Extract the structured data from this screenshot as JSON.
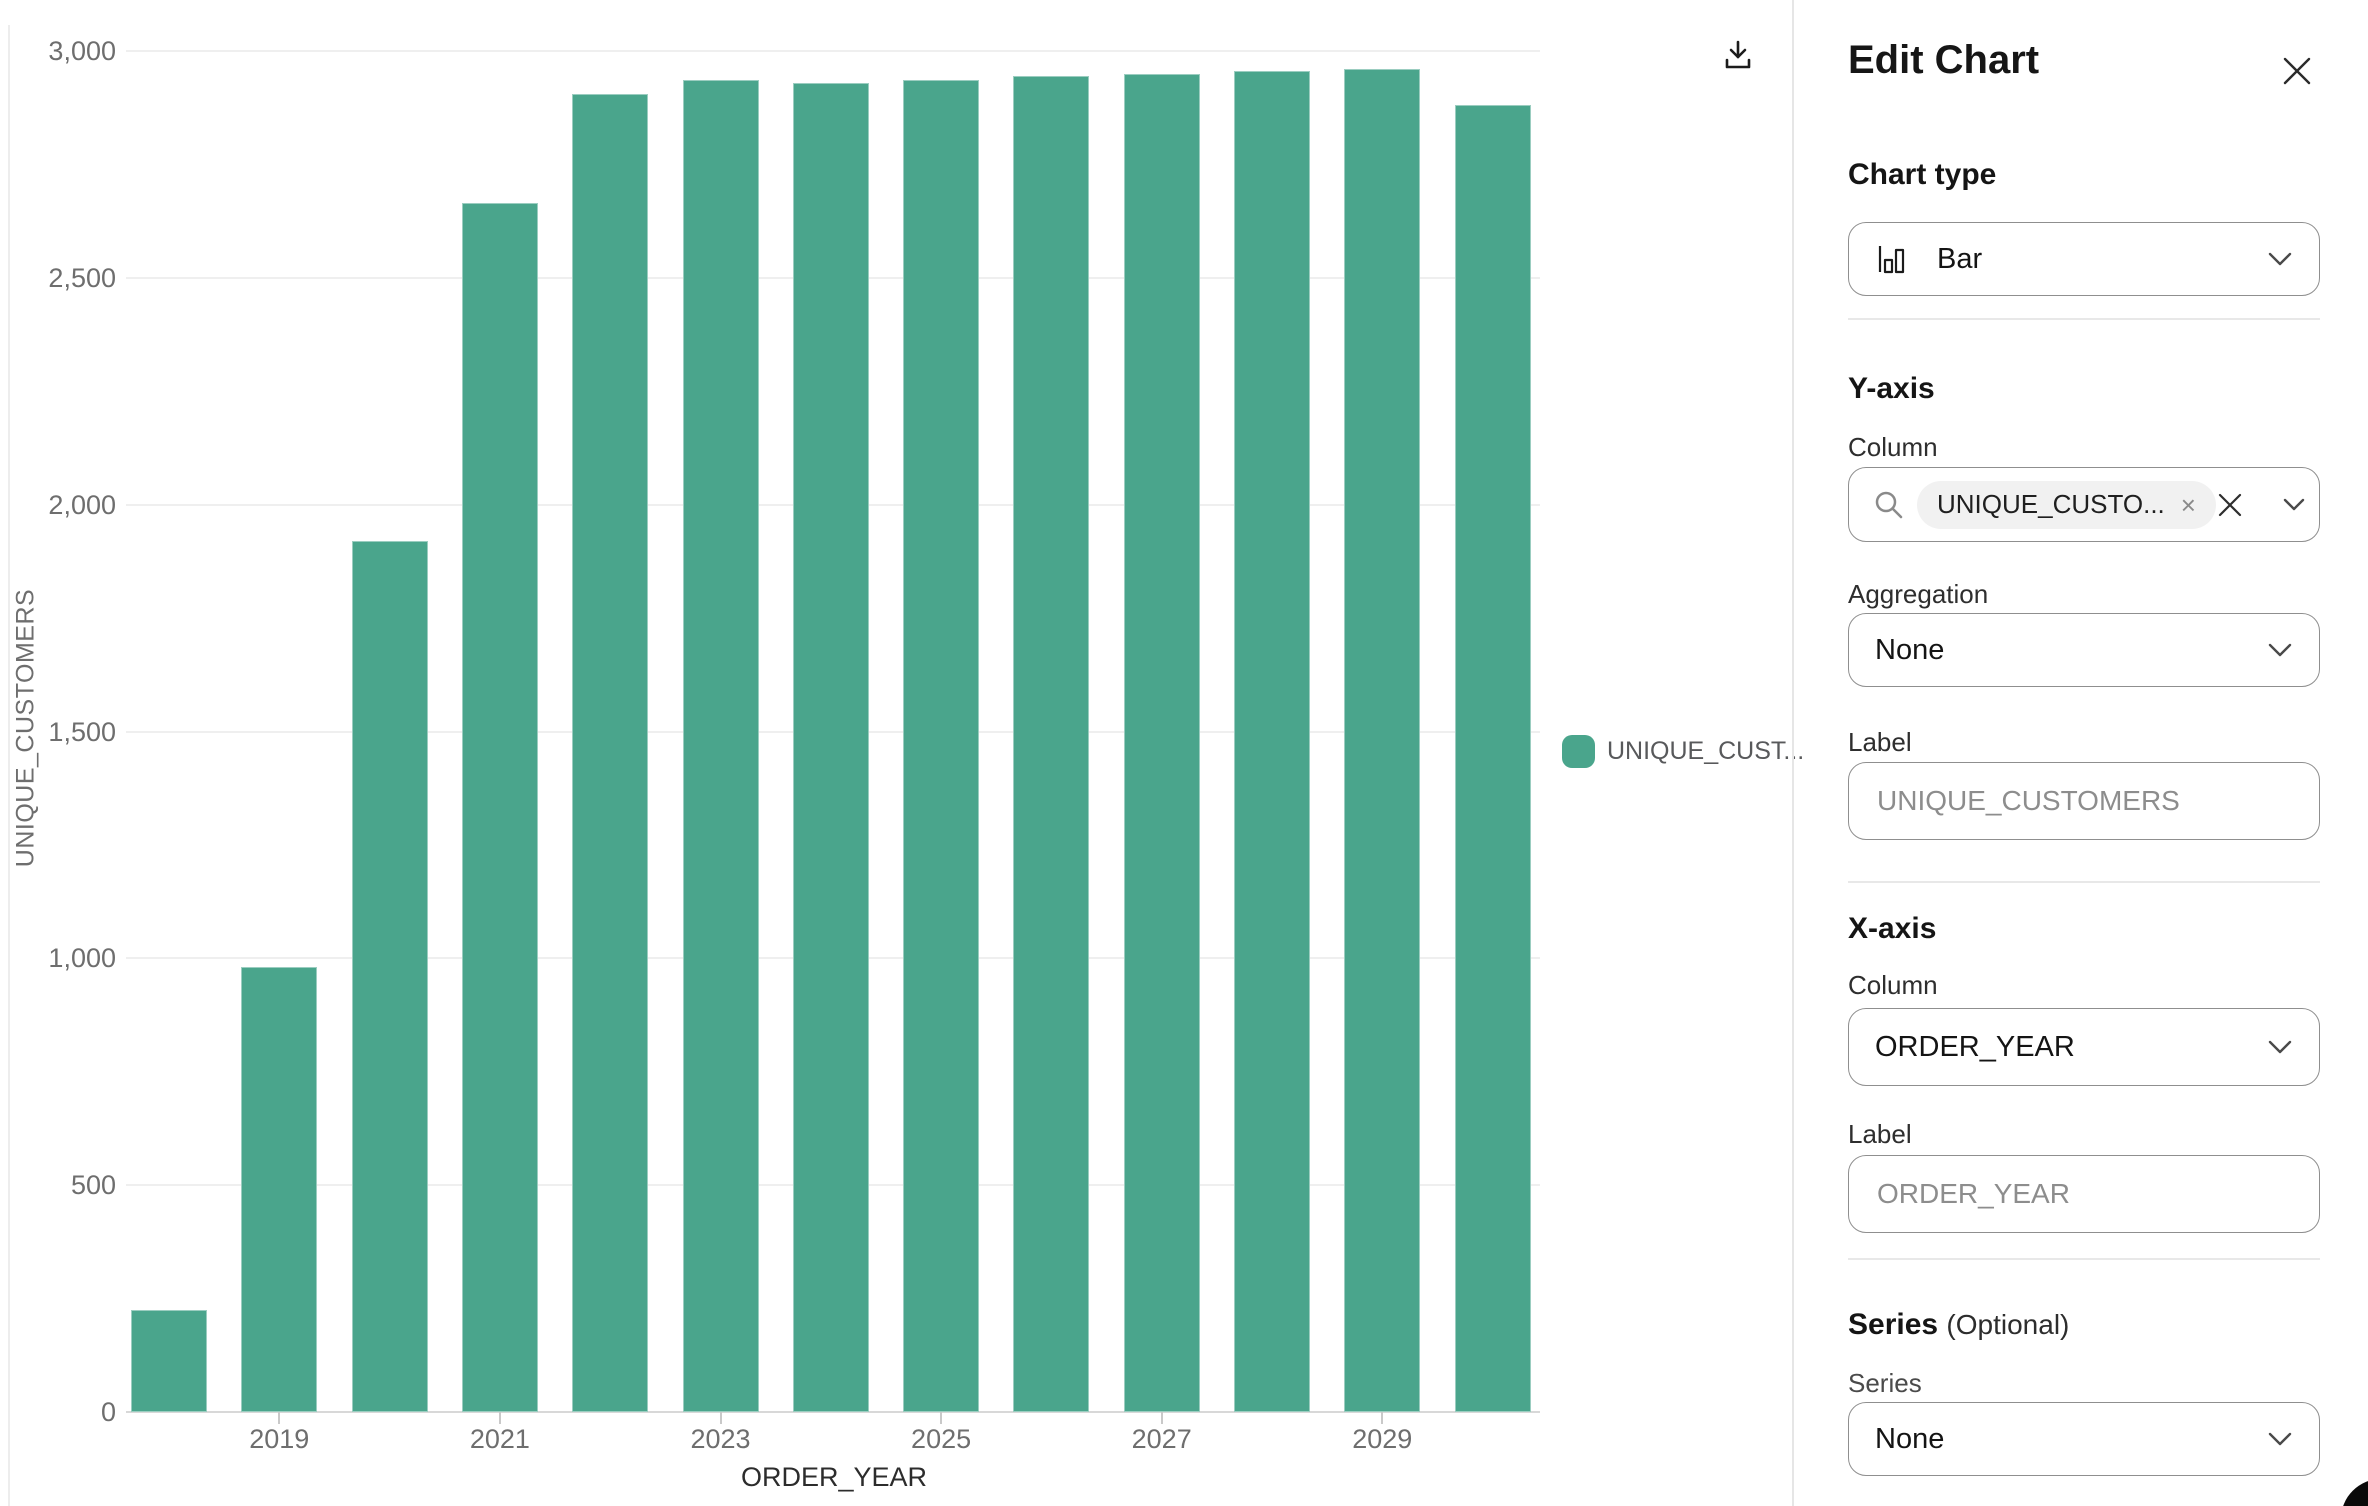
{
  "chart_data": {
    "type": "bar",
    "title": "",
    "categories": [
      2018,
      2019,
      2020,
      2021,
      2022,
      2023,
      2024,
      2025,
      2026,
      2027,
      2028,
      2029,
      2030
    ],
    "values": [
      225,
      980,
      1920,
      2665,
      2905,
      2935,
      2930,
      2935,
      2945,
      2950,
      2955,
      2960,
      2880
    ],
    "xlabel": "ORDER_YEAR",
    "ylabel": "UNIQUE_CUSTOMERS",
    "legend": [
      "UNIQUE_CUST..."
    ],
    "legend_position": "right",
    "ylim": [
      0,
      3000
    ],
    "yticks": [
      0,
      500,
      1000,
      1500,
      2000,
      2500,
      3000
    ],
    "ytick_labels": [
      "0",
      "500",
      "1,000",
      "1,500",
      "2,000",
      "2,500",
      "3,000"
    ],
    "xtick_labels": [
      "2019",
      "2021",
      "2023",
      "2025",
      "2027",
      "2029"
    ],
    "bar_color": "#4aa58c",
    "grid": true
  },
  "icons": {
    "download": "download-icon",
    "close": "close-icon",
    "search": "search-icon",
    "chevron": "chevron-down-icon",
    "clear": "clear-icon",
    "chip_remove": "remove-icon",
    "bar_chart": "bar-chart-icon"
  },
  "panel": {
    "title": "Edit Chart",
    "chart_type": {
      "heading": "Chart type",
      "value": "Bar"
    },
    "y_axis": {
      "heading": "Y-axis",
      "column_label": "Column",
      "column_chip": "UNIQUE_CUSTO...",
      "column_value": "",
      "aggregation_label": "Aggregation",
      "aggregation_value": "None",
      "label_label": "Label",
      "label_value": "",
      "label_placeholder": "UNIQUE_CUSTOMERS"
    },
    "x_axis": {
      "heading": "X-axis",
      "column_label": "Column",
      "column_value": "ORDER_YEAR",
      "label_label": "Label",
      "label_value": "",
      "label_placeholder": "ORDER_YEAR"
    },
    "series": {
      "heading": "Series",
      "optional": "(Optional)",
      "series_label": "Series",
      "series_value": "None"
    }
  }
}
